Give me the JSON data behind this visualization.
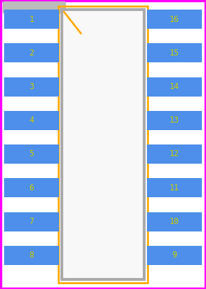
{
  "bg_color": "#ffffff",
  "border_color": "#ff00ff",
  "border_linewidth": 2.5,
  "ic_fill_color": "#f8f8f8",
  "ic_edge_color": "#aaaaaa",
  "ic_linewidth": 3.5,
  "orange_color": "#ffaa00",
  "orange_linewidth": 2.5,
  "pin_fill_color": "#4d8fea",
  "pin_text_color": "#cccc00",
  "pin_font_size": 8.5,
  "left_pins": [
    1,
    2,
    3,
    4,
    5,
    6,
    7,
    8
  ],
  "right_pins": [
    16,
    15,
    14,
    13,
    12,
    11,
    10,
    9
  ],
  "notch_line_color": "#ffaa00",
  "gray_bar_color": "#bbbbbb"
}
